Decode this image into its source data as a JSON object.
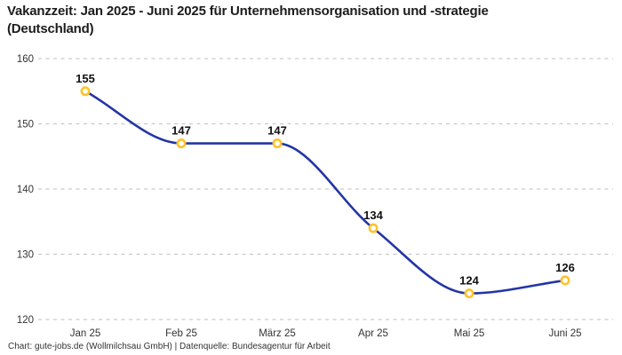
{
  "title": "Vakanzzeit: Jan 2025 - Juni 2025 für Unternehmensorganisation und -strategie (Deutschland)",
  "footer": "Chart: gute-jobs.de (Wollmilchsau GmbH) | Datenquelle: Bundesagentur für Arbeit",
  "colors": {
    "line": "#2335a6",
    "marker_stroke": "#ffc32c",
    "marker_fill": "#ffffff",
    "grid": "#c9c9c9",
    "title_text": "#1c1c1c",
    "tick_text": "#333333",
    "point_label_text": "#111111"
  },
  "chart_data": {
    "type": "line",
    "categories": [
      "Jan 25",
      "Feb 25",
      "März 25",
      "Apr 25",
      "Mai 25",
      "Juni 25"
    ],
    "values": [
      155,
      147,
      147,
      134,
      124,
      126
    ],
    "title": "Vakanzzeit: Jan 2025 - Juni 2025 für Unternehmensorganisation und -strategie (Deutschland)",
    "xlabel": "",
    "ylabel": "",
    "ylim": [
      120,
      160
    ],
    "yticks": [
      120,
      130,
      140,
      150,
      160
    ],
    "grid": "horizontal-dashed",
    "legend_position": "none",
    "point_labels_visible": true,
    "marker_style": "open-circle"
  }
}
